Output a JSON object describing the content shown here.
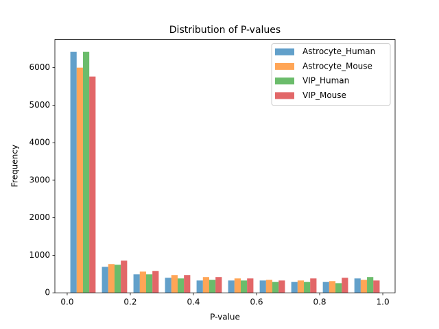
{
  "chart_data": {
    "type": "histogram",
    "title": "Distribution of P-values",
    "xlabel": "P-value",
    "ylabel": "Frequency",
    "bins": [
      0,
      0.1,
      0.2,
      0.3,
      0.4,
      0.5,
      0.6,
      0.7,
      0.8,
      0.9,
      1.0
    ],
    "series": [
      {
        "name": "Astrocyte_Human",
        "color": "#1f77b4",
        "values": [
          6420,
          693,
          492,
          401,
          328,
          328,
          328,
          292,
          292,
          383
        ]
      },
      {
        "name": "Astrocyte_Mouse",
        "color": "#ff7f0e",
        "values": [
          6000,
          766,
          565,
          474,
          420,
          383,
          347,
          328,
          310,
          347
        ]
      },
      {
        "name": "VIP_Human",
        "color": "#2ca02c",
        "values": [
          6420,
          748,
          492,
          383,
          347,
          328,
          292,
          292,
          255,
          420
        ]
      },
      {
        "name": "VIP_Mouse",
        "color": "#d62728",
        "values": [
          5763,
          857,
          583,
          474,
          420,
          383,
          328,
          383,
          401,
          328
        ]
      }
    ],
    "alpha": 0.7,
    "xlim": [
      -0.039,
      1.039
    ],
    "xticks": [
      {
        "value": 0,
        "label": "0.0"
      },
      0.2,
      0.4,
      0.6,
      0.8,
      {
        "value": 1,
        "label": "1.0"
      }
    ],
    "ylim": [
      0,
      6750
    ],
    "yticks": [
      0,
      1000,
      2000,
      3000,
      4000,
      5000,
      6000
    ],
    "legend": "upper right"
  }
}
